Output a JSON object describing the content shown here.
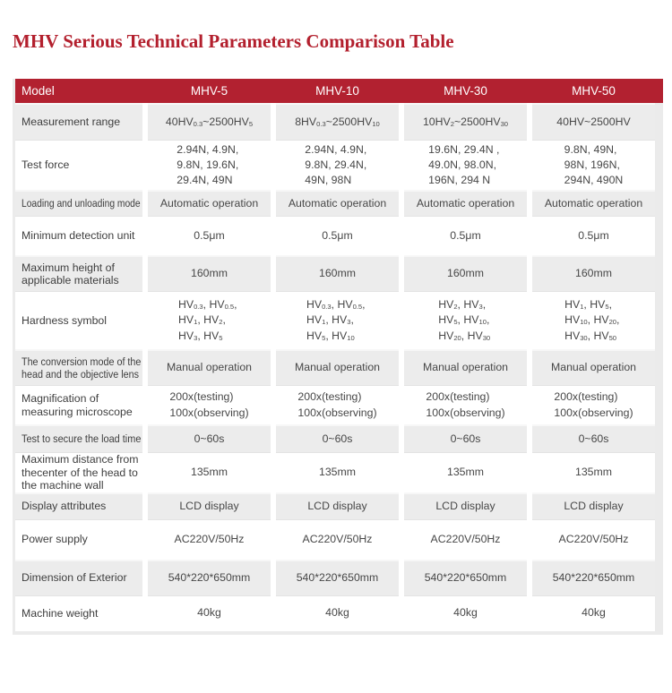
{
  "page": {
    "title": "MHV Serious Technical Parameters Comparison Table"
  },
  "colors": {
    "header_red": "#b22130",
    "title_red": "#b3202e",
    "stripe_gray": "#ececec",
    "header_text": "#ffffff"
  },
  "table": {
    "header": {
      "model_label": "Model",
      "columns": [
        "MHV-5",
        "MHV-10",
        "MHV-30",
        "MHV-50"
      ]
    },
    "rows": [
      {
        "label": "Measurement range",
        "values": [
          "40HV_{0.3}~2500HV_{5}",
          "8HV_{0.3}~2500HV_{10}",
          "10HV_{2}~2500HV_{30}",
          "40HV~2500HV"
        ]
      },
      {
        "label": "Test force",
        "values": [
          "2.94N、4.9N、\n9.8N、19.6N、\n29.4N、49N",
          "2.94N、4.9N、\n9.8N、29.4N、\n49N、98N",
          "19.6N、29.4N 、\n49.0N、98.0N、\n196N、294 N",
          "9.8N、49N、\n98N、196N、\n294N、490N"
        ]
      },
      {
        "label": "Loading and unloading mode",
        "values": [
          "Automatic operation",
          "Automatic operation",
          "Automatic operation",
          "Automatic operation"
        ]
      },
      {
        "label": "Minimum detection unit",
        "values": [
          "0.5μm",
          "0.5μm",
          "0.5μm",
          "0.5μm"
        ]
      },
      {
        "label": "Maximum height of\napplicable materials",
        "values": [
          "160mm",
          "160mm",
          "160mm",
          "160mm"
        ]
      },
      {
        "label": "Hardness symbol",
        "values": [
          "HV_{0.3}、HV_{0.5}、\nHV_{1}、HV_{2}、\nHV_{3}、HV_{5}",
          "HV_{0.3}、HV_{0.5}、\nHV_{1}、HV_{3}、\nHV_{5}、HV_{10}",
          "HV_{2}、HV_{3}、\nHV_{5}、HV_{10}、\nHV_{20}、HV_{30}",
          "HV_{1}、HV_{5}、\nHV_{10}、HV_{20}、\nHV_{30}、HV_{50}"
        ]
      },
      {
        "label": "The conversion mode of the\nhead and the objective lens",
        "values": [
          "Manual operation",
          "Manual operation",
          "Manual operation",
          "Manual operation"
        ]
      },
      {
        "label": "Magnification of\nmeasuring microscope",
        "values": [
          "200x(testing)\n100x(observing)",
          "200x(testing)\n100x(observing)",
          "200x(testing)\n100x(observing)",
          "200x(testing)\n100x(observing)"
        ]
      },
      {
        "label": "Test to secure the load time",
        "values": [
          "0~60s",
          "0~60s",
          "0~60s",
          "0~60s"
        ]
      },
      {
        "label": "Maximum distance from\nthecenter of the head to\nthe machine wall",
        "values": [
          "135mm",
          "135mm",
          "135mm",
          "135mm"
        ]
      },
      {
        "label": "Display attributes",
        "values": [
          "LCD display",
          "LCD display",
          "LCD display",
          "LCD display"
        ]
      },
      {
        "label": "Power supply",
        "values": [
          "AC220V/50Hz",
          "AC220V/50Hz",
          "AC220V/50Hz",
          "AC220V/50Hz"
        ]
      },
      {
        "label": "Dimension of Exterior",
        "values": [
          "540*220*650mm",
          "540*220*650mm",
          "540*220*650mm",
          "540*220*650mm"
        ]
      },
      {
        "label": "Machine weight",
        "values": [
          "40kg",
          "40kg",
          "40kg",
          "40kg"
        ]
      }
    ]
  }
}
